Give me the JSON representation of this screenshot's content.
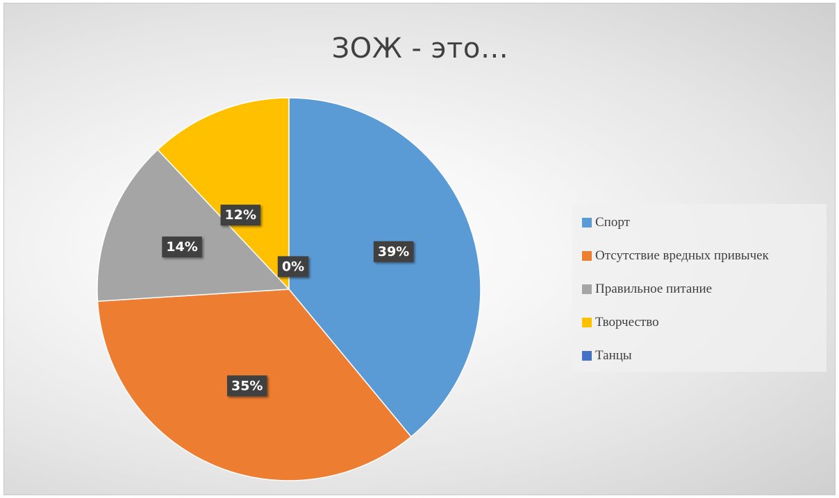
{
  "chart_data": {
    "type": "pie",
    "title": "ЗОЖ - это…",
    "categories": [
      "Спорт",
      "Отсутствие вредных привычек",
      "Правильное питание",
      "Творчество",
      "Танцы"
    ],
    "values": [
      39,
      35,
      14,
      12,
      0
    ],
    "data_labels": [
      "39%",
      "35%",
      "14%",
      "12%",
      "0%"
    ],
    "colors": [
      "#5B9BD5",
      "#ED7D31",
      "#A5A5A5",
      "#FFC000",
      "#4472C4"
    ],
    "legend_position": "right",
    "start_angle_deg": 0,
    "direction": "clockwise"
  }
}
